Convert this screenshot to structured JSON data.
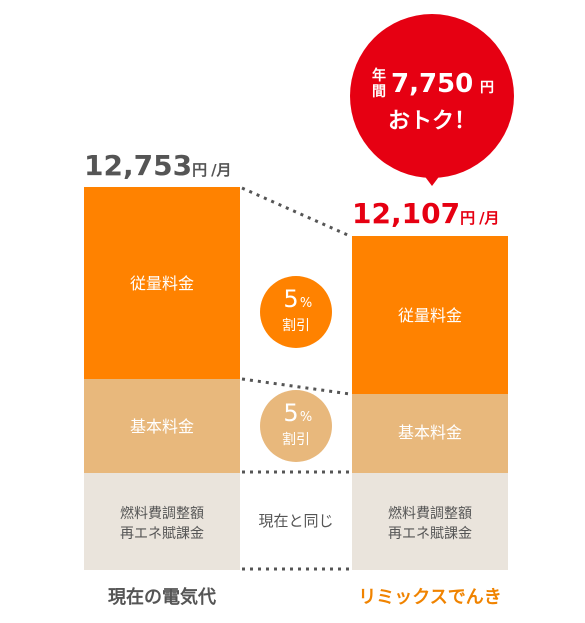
{
  "colors": {
    "usage": "#FF8200",
    "basic": "#E8B87C",
    "fuel": "#EAE4DC",
    "highlight": "#E60012",
    "current_text": "#555555",
    "remix_text": "#E60012",
    "remix_label": "#F08300"
  },
  "chart_data": {
    "type": "bar",
    "stacked": true,
    "categories": [
      "現在の電気代",
      "リミックスでんき"
    ],
    "series": [
      {
        "name": "燃料費調整額\n再エネ賦課金",
        "values": [
          null,
          null
        ]
      },
      {
        "name": "基本料金",
        "values": [
          null,
          null
        ]
      },
      {
        "name": "従量料金",
        "values": [
          null,
          null
        ]
      }
    ],
    "totals": [
      12753,
      12107
    ],
    "total_labels": [
      "12,753",
      "12,107"
    ],
    "unit": "円",
    "per": "/月",
    "segment_labels": {
      "usage": "従量料金",
      "basic": "基本料金",
      "fuel_line1": "燃料費調整額",
      "fuel_line2": "再エネ賦課金"
    },
    "comparisons": [
      {
        "pct": "5",
        "pct_sign": "%",
        "text": "割引"
      },
      {
        "pct": "5",
        "pct_sign": "%",
        "text": "割引"
      },
      {
        "text": "現在と同じ"
      }
    ],
    "callout": {
      "prefix_line1": "年",
      "prefix_line2": "間",
      "amount": "7,750",
      "unit": "円",
      "line2": "おトク！"
    }
  }
}
